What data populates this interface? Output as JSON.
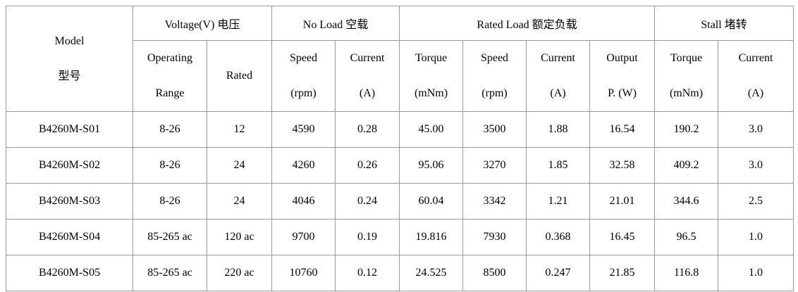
{
  "header": {
    "model": [
      "Model",
      "型号"
    ],
    "groups": [
      "Voltage(V) 电压",
      "No Load 空载",
      "Rated Load 额定负载",
      "Stall 堵转"
    ],
    "subheaders": [
      [
        "Operating",
        "Range"
      ],
      [
        "Rated"
      ],
      [
        "Speed",
        "(rpm)"
      ],
      [
        "Current",
        "(A)"
      ],
      [
        "Torque",
        "(mNm)"
      ],
      [
        "Speed",
        "(rpm)"
      ],
      [
        "Current",
        "(A)"
      ],
      [
        "Output",
        "P. (W)"
      ],
      [
        "Torque",
        "(mNm)"
      ],
      [
        "Current",
        "(A)"
      ]
    ]
  },
  "table": {
    "rows": [
      [
        "B4260M-S01",
        "8-26",
        "12",
        "4590",
        "0.28",
        "45.00",
        "3500",
        "1.88",
        "16.54",
        "190.2",
        "3.0"
      ],
      [
        "B4260M-S02",
        "8-26",
        "24",
        "4260",
        "0.26",
        "95.06",
        "3270",
        "1.85",
        "32.58",
        "409.2",
        "3.0"
      ],
      [
        "B4260M-S03",
        "8-26",
        "24",
        "4046",
        "0.24",
        "60.04",
        "3342",
        "1.21",
        "21.01",
        "344.6",
        "2.5"
      ],
      [
        "B4260M-S04",
        "85-265 ac",
        "120 ac",
        "9700",
        "0.19",
        "19.816",
        "7930",
        "0.368",
        "16.45",
        "96.5",
        "1.0"
      ],
      [
        "B4260M-S05",
        "85-265 ac",
        "220 ac",
        "10760",
        "0.12",
        "24.525",
        "8500",
        "0.247",
        "21.85",
        "116.8",
        "1.0"
      ]
    ]
  }
}
